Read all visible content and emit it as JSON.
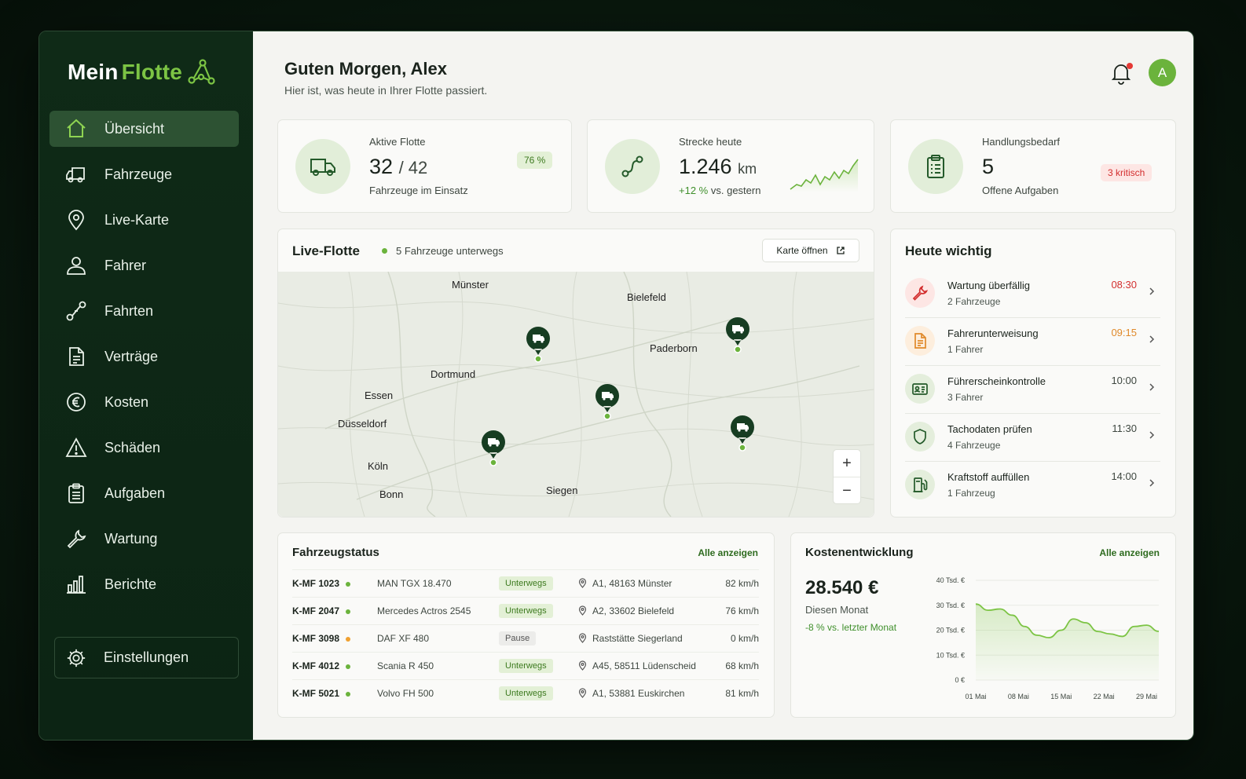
{
  "app": {
    "brand_part1": "Mein",
    "brand_part2": "Flotte",
    "accent": "#7cc444",
    "sidebar_bg": "#0f2a17"
  },
  "sidebar": {
    "items": [
      {
        "label": "Übersicht",
        "icon": "home-icon",
        "active": true
      },
      {
        "label": "Fahrzeuge",
        "icon": "truck-icon"
      },
      {
        "label": "Live-Karte",
        "icon": "map-pin-icon"
      },
      {
        "label": "Fahrer",
        "icon": "user-icon"
      },
      {
        "label": "Fahrten",
        "icon": "route-icon"
      },
      {
        "label": "Verträge",
        "icon": "document-icon"
      },
      {
        "label": "Kosten",
        "icon": "euro-icon"
      },
      {
        "label": "Schäden",
        "icon": "warning-icon"
      },
      {
        "label": "Aufgaben",
        "icon": "clipboard-icon"
      },
      {
        "label": "Wartung",
        "icon": "wrench-icon"
      },
      {
        "label": "Berichte",
        "icon": "bar-chart-icon"
      }
    ],
    "settings_label": "Einstellungen"
  },
  "header": {
    "title": "Guten Morgen, Alex",
    "subtitle": "Hier ist, was heute in Ihrer Flotte passiert.",
    "avatar_initial": "A"
  },
  "stats": {
    "fleet": {
      "label": "Aktive Flotte",
      "value": "32",
      "total": "/ 42",
      "foot": "Fahrzeuge im Einsatz",
      "badge": "76 %"
    },
    "distance": {
      "label": "Strecke heute",
      "value": "1.246",
      "unit": "km",
      "trend": "+12 %",
      "foot": "vs. gestern"
    },
    "tasks": {
      "label": "Handlungsbedarf",
      "value": "5",
      "foot": "Offene Aufgaben",
      "badge": "3 kritisch"
    }
  },
  "live": {
    "title": "Live-Flotte",
    "status": "5 Fahrzeuge unterwegs",
    "open_button": "Karte öffnen",
    "cities": [
      "Münster",
      "Bielefeld",
      "Paderborn",
      "Dortmund",
      "Essen",
      "Düsseldorf",
      "Köln",
      "Bonn",
      "Siegen"
    ],
    "zoom_in": "+",
    "zoom_out": "−"
  },
  "today": {
    "title": "Heute wichtig",
    "items": [
      {
        "title": "Wartung überfällig",
        "sub": "2 Fahrzeuge",
        "time": "08:30",
        "icon": "wrench-icon"
      },
      {
        "title": "Fahrerunterweisung",
        "sub": "1 Fahrer",
        "time": "09:15",
        "icon": "document-icon"
      },
      {
        "title": "Führerscheinkontrolle",
        "sub": "3 Fahrer",
        "time": "10:00",
        "icon": "id-card-icon"
      },
      {
        "title": "Tachodaten prüfen",
        "sub": "4 Fahrzeuge",
        "time": "11:30",
        "icon": "shield-icon"
      },
      {
        "title": "Kraftstoff auffüllen",
        "sub": "1 Fahrzeug",
        "time": "14:00",
        "icon": "fuel-icon"
      }
    ]
  },
  "vehicles": {
    "title": "Fahrzeugstatus",
    "link": "Alle anzeigen",
    "rows": [
      {
        "plate": "K-MF 1023",
        "model": "MAN TGX 18.470",
        "status": "Unterwegs",
        "location": "A1, 48163 Münster",
        "speed": "82 km/h"
      },
      {
        "plate": "K-MF 2047",
        "model": "Mercedes Actros 2545",
        "status": "Unterwegs",
        "location": "A2, 33602 Bielefeld",
        "speed": "76 km/h"
      },
      {
        "plate": "K-MF 3098",
        "model": "DAF XF 480",
        "status": "Pause",
        "location": "Raststätte Siegerland",
        "speed": "0 km/h"
      },
      {
        "plate": "K-MF 4012",
        "model": "Scania R 450",
        "status": "Unterwegs",
        "location": "A45, 58511 Lüdenscheid",
        "speed": "68 km/h"
      },
      {
        "plate": "K-MF 5021",
        "model": "Volvo FH 500",
        "status": "Unterwegs",
        "location": "A1, 53881 Euskirchen",
        "speed": "81 km/h"
      }
    ]
  },
  "costs": {
    "title": "Kostenentwicklung",
    "link": "Alle anzeigen",
    "value": "28.540 €",
    "period": "Diesen Monat",
    "trend": "-8 % vs. letzter Monat"
  },
  "chart_data": {
    "type": "area",
    "title": "",
    "xlabel": "",
    "ylabel": "",
    "x_ticks": [
      "01 Mai",
      "08 Mai",
      "15 Mai",
      "22 Mai",
      "29 Mai"
    ],
    "y_ticks": [
      "0 €",
      "10 Tsd. €",
      "20 Tsd. €",
      "30 Tsd. €",
      "40 Tsd. €"
    ],
    "ylim": [
      0,
      40000
    ],
    "x": [
      1,
      3,
      5,
      7,
      9,
      11,
      13,
      15,
      17,
      19,
      21,
      23,
      25,
      27,
      29,
      31
    ],
    "values": [
      30500,
      28000,
      28500,
      26000,
      21500,
      18000,
      17000,
      20000,
      24500,
      23000,
      19500,
      18500,
      17500,
      21500,
      22000,
      19500
    ],
    "color": "#7cc444"
  }
}
